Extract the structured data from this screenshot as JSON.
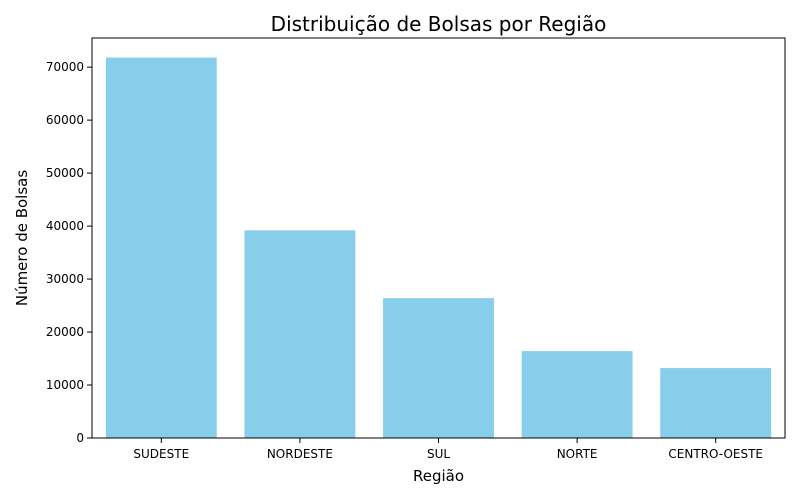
{
  "chart_data": {
    "type": "bar",
    "title": "Distribuição de Bolsas por Região",
    "xlabel": "Região",
    "ylabel": "Número de Bolsas",
    "categories": [
      "SUDESTE",
      "NORDESTE",
      "SUL",
      "NORTE",
      "CENTRO-OESTE"
    ],
    "values": [
      71800,
      39200,
      26400,
      16400,
      13200
    ],
    "ylim": [
      0,
      75500
    ],
    "yticks": [
      0,
      10000,
      20000,
      30000,
      40000,
      50000,
      60000,
      70000
    ],
    "bar_color": "#87CEEB",
    "grid": false,
    "legend": "none"
  }
}
